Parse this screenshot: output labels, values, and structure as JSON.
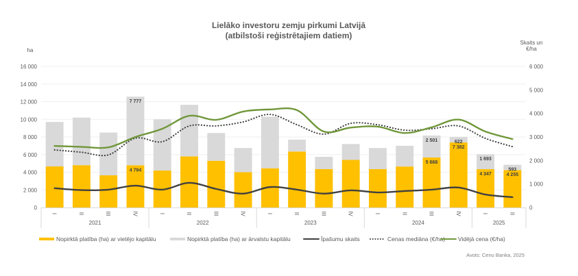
{
  "chart_data": {
    "type": "bar",
    "title": "Lielāko investoru zemju pirkumi Latvijā",
    "subtitle": "(atbilstoši reģistrētajiem datiem)",
    "ylabel_left": "ha",
    "ylabel_right": "Skaits un €/ha",
    "ylim_left": [
      0,
      16000
    ],
    "ylim_right": [
      0,
      6000
    ],
    "yticks_left": [
      "0",
      "2 000",
      "4 000",
      "6 000",
      "8 000",
      "10 000",
      "12 000",
      "14 000",
      "16 000"
    ],
    "yticks_right": [
      "0",
      "1 000",
      "2 000",
      "3 000",
      "4 000",
      "5 000",
      "6 000"
    ],
    "grid": true,
    "legend_position": "bottom",
    "source": "Avots: Cenu Banka, 2025",
    "categories": [
      "I",
      "II",
      "III",
      "IV",
      "I",
      "II",
      "III",
      "IV",
      "I",
      "II",
      "III",
      "IV",
      "I",
      "II",
      "III",
      "IV",
      "I",
      "II"
    ],
    "groups": [
      {
        "label": "2021",
        "count": 4
      },
      {
        "label": "2022",
        "count": 4
      },
      {
        "label": "2023",
        "count": 4
      },
      {
        "label": "2024",
        "count": 4
      },
      {
        "label": "2025",
        "count": 2
      }
    ],
    "series": [
      {
        "name": "Nopirktā platība (ha) ar vietējo kapitālu",
        "kind": "bar-stacked",
        "axis": "left",
        "color": "#FFC000",
        "values": [
          4660,
          4800,
          3650,
          4794,
          4200,
          5800,
          5300,
          4000,
          4450,
          6350,
          4350,
          5400,
          4350,
          4650,
          5668,
          7382,
          4347,
          4255
        ],
        "labels": [
          null,
          null,
          null,
          "4 794",
          null,
          null,
          null,
          null,
          null,
          null,
          null,
          null,
          null,
          null,
          "5 668",
          "7 382",
          "4 347",
          "4 255"
        ]
      },
      {
        "name": "Nopirktā platība (ha) ar ārvalstu kapitālu",
        "kind": "bar-stacked",
        "axis": "left",
        "color": "#D9D9D9",
        "values": [
          5040,
          5400,
          4850,
          7777,
          5800,
          5850,
          3150,
          2750,
          5850,
          1350,
          1400,
          1800,
          2400,
          2350,
          2501,
          622,
          1693,
          593
        ],
        "labels": [
          null,
          null,
          null,
          "7 777",
          null,
          null,
          null,
          null,
          null,
          null,
          null,
          null,
          null,
          null,
          "2 501",
          "622",
          "1 693",
          "593"
        ]
      },
      {
        "name": "Īpašumu skaits",
        "kind": "line",
        "axis": "right",
        "color": "#404040",
        "style": "solid",
        "values": [
          820,
          740,
          760,
          930,
          760,
          1050,
          790,
          590,
          870,
          760,
          590,
          730,
          640,
          700,
          760,
          850,
          550,
          440
        ]
      },
      {
        "name": "Cenas mediāna (€/ha)",
        "kind": "line",
        "axis": "right",
        "color": "#404040",
        "style": "dotted",
        "values": [
          2450,
          2350,
          2240,
          2950,
          2800,
          3470,
          3470,
          3640,
          3960,
          3520,
          3120,
          3580,
          3520,
          3290,
          3350,
          3470,
          2940,
          2590
        ]
      },
      {
        "name": "Vidējā cena (€/ha)",
        "kind": "line",
        "axis": "right",
        "color": "#70973A",
        "style": "solid",
        "values": [
          2620,
          2580,
          2560,
          3000,
          3350,
          3900,
          3730,
          4080,
          4170,
          4140,
          3230,
          3400,
          3440,
          3170,
          3410,
          3740,
          3230,
          2910
        ]
      }
    ]
  }
}
